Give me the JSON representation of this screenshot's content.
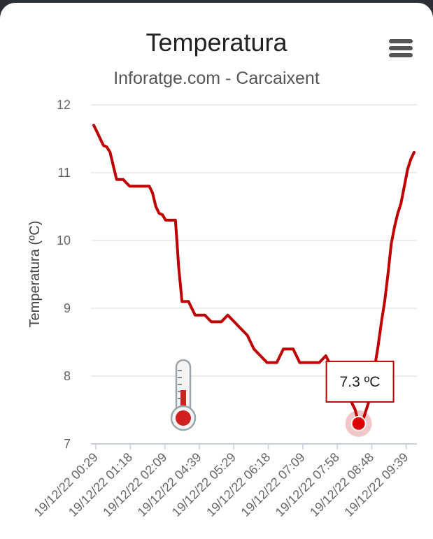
{
  "header": {
    "title": "Temperatura",
    "subtitle": "Inforatge.com - Carcaixent",
    "menu_icon": "hamburger-menu-icon"
  },
  "decoration": {
    "icon": "thermometer-icon"
  },
  "colors": {
    "line": "#c00000",
    "grid": "#e6e6e6",
    "tooltip_border": "#c00000"
  },
  "chart_data": {
    "type": "line",
    "title": "Temperatura",
    "subtitle": "Inforatge.com - Carcaixent",
    "xlabel": "",
    "ylabel": "Temperatura (ºC)",
    "ylim": [
      7,
      12
    ],
    "yticks": [
      7,
      8,
      9,
      10,
      11,
      12
    ],
    "grid": true,
    "legend": "none",
    "x_tick_labels": [
      "19/12/22 00:29",
      "19/12/22 01:18",
      "19/12/22 02:09",
      "19/12/22 04:39",
      "19/12/22 05:29",
      "19/12/22 06:18",
      "19/12/22 07:09",
      "19/12/22 07:58",
      "19/12/22 08:48",
      "19/12/22 09:39"
    ],
    "series": [
      {
        "name": "",
        "unit": "ºC",
        "values": [
          11.7,
          11.6,
          11.5,
          11.4,
          11.38,
          11.3,
          11.1,
          10.9,
          10.9,
          10.9,
          10.85,
          10.8,
          10.8,
          10.8,
          10.8,
          10.8,
          10.8,
          10.8,
          10.7,
          10.5,
          10.4,
          10.38,
          10.3,
          10.3,
          10.3,
          10.3,
          9.6,
          9.1,
          9.1,
          9.1,
          9.0,
          8.9,
          8.9,
          8.9,
          8.9,
          8.85,
          8.8,
          8.8,
          8.8,
          8.8,
          8.85,
          8.9,
          8.85,
          8.8,
          8.75,
          8.7,
          8.65,
          8.6,
          8.5,
          8.4,
          8.35,
          8.3,
          8.25,
          8.2,
          8.2,
          8.2,
          8.2,
          8.3,
          8.4,
          8.4,
          8.4,
          8.4,
          8.3,
          8.2,
          8.2,
          8.2,
          8.2,
          8.2,
          8.2,
          8.2,
          8.25,
          8.3,
          8.2,
          8.0,
          7.8,
          7.7,
          7.7,
          7.7,
          7.75,
          7.6,
          7.5,
          7.3,
          7.3,
          7.45,
          7.6,
          7.9,
          8.15,
          8.45,
          8.8,
          9.1,
          9.5,
          9.95,
          10.2,
          10.4,
          10.55,
          10.8,
          11.05,
          11.2,
          11.3
        ],
        "highlighted_point": {
          "index": 81,
          "value": 7.3
        }
      }
    ],
    "tooltip": {
      "text": "7.3 ºC"
    }
  }
}
